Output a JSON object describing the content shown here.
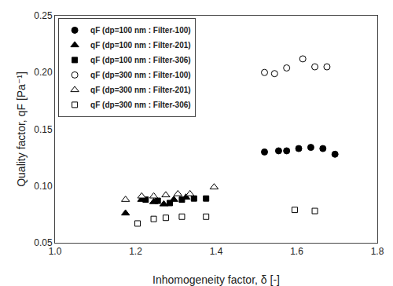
{
  "chart_data": {
    "type": "scatter",
    "xlabel": "Inhomogeneity factor, δ [-]",
    "ylabel": "Quality factor, qF [Pa⁻¹]",
    "xlim": [
      1.0,
      1.8
    ],
    "ylim": [
      0.05,
      0.25
    ],
    "xticks": [
      {
        "value": 1.0,
        "label": "1.0"
      },
      1.2,
      1.4,
      1.6,
      1.8
    ],
    "yticks": [
      0.05,
      {
        "value": 0.1,
        "label": "0.10"
      },
      0.15,
      {
        "value": 0.2,
        "label": "0.20"
      },
      0.25
    ],
    "grid": false,
    "legend": "upper left",
    "series": [
      {
        "name": "qF (dp=100 nm : Filter-100)",
        "marker": "circle",
        "color": "black",
        "x": [
          1.52,
          1.555,
          1.575,
          1.605,
          1.635,
          1.665,
          1.695
        ],
        "values": [
          0.13,
          0.131,
          0.131,
          0.133,
          0.134,
          0.133,
          0.128
        ]
      },
      {
        "name": "qF (dp=100 nm : Filter-201)",
        "marker": "triangle",
        "color": "black",
        "x": [
          1.175,
          1.215,
          1.245,
          1.27,
          1.295,
          1.325
        ],
        "values": [
          0.076,
          0.088,
          0.086,
          0.084,
          0.088,
          0.09
        ]
      },
      {
        "name": "qF (dp=100 nm : Filter-306)",
        "marker": "square",
        "color": "black",
        "x": [
          1.225,
          1.255,
          1.285,
          1.315,
          1.345,
          1.375
        ],
        "values": [
          0.088,
          0.087,
          0.085,
          0.088,
          0.089,
          0.089
        ]
      },
      {
        "name": "qF (dp=300 nm : Filter-100)",
        "marker": "circle",
        "color": "white",
        "x": [
          1.52,
          1.545,
          1.575,
          1.615,
          1.645,
          1.675
        ],
        "values": [
          0.2,
          0.199,
          0.204,
          0.212,
          0.205,
          0.205
        ]
      },
      {
        "name": "qF (dp=300 nm : Filter-201)",
        "marker": "triangle",
        "color": "white",
        "x": [
          1.175,
          1.215,
          1.245,
          1.275,
          1.305,
          1.335,
          1.395
        ],
        "values": [
          0.088,
          0.091,
          0.091,
          0.092,
          0.093,
          0.093,
          0.099
        ]
      },
      {
        "name": "qF (dp=300 nm : Filter-306)",
        "marker": "square",
        "color": "white",
        "x": [
          1.205,
          1.245,
          1.275,
          1.315,
          1.375,
          1.595,
          1.645
        ],
        "values": [
          0.067,
          0.071,
          0.072,
          0.073,
          0.073,
          0.079,
          0.078
        ]
      }
    ]
  }
}
